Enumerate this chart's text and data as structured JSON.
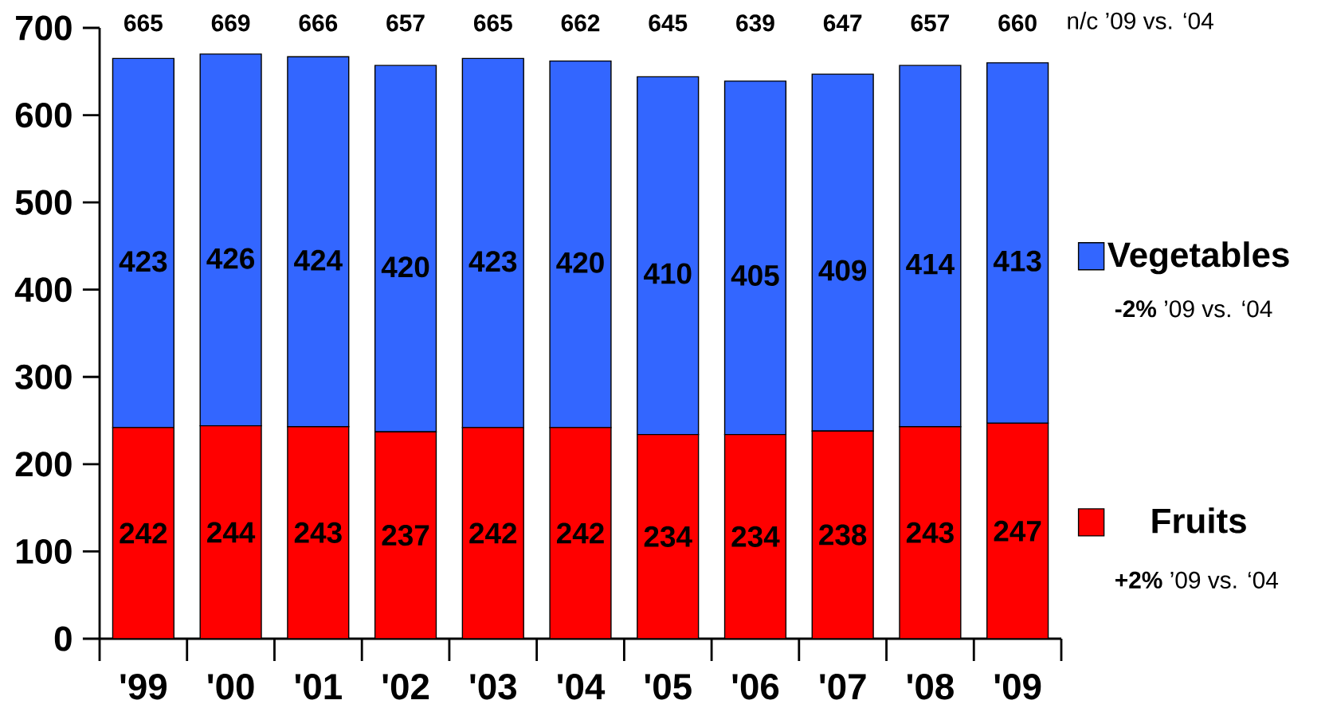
{
  "chart_data": {
    "type": "bar",
    "stacked": true,
    "categories": [
      "'99",
      "'00",
      "'01",
      "'02",
      "'03",
      "'04",
      "'05",
      "'06",
      "'07",
      "'08",
      "'09"
    ],
    "series": [
      {
        "name": "Fruits",
        "color": "#ff0000",
        "values": [
          242,
          244,
          243,
          237,
          242,
          242,
          234,
          234,
          238,
          243,
          247
        ]
      },
      {
        "name": "Vegetables",
        "color": "#3366ff",
        "values": [
          423,
          426,
          424,
          420,
          423,
          420,
          410,
          405,
          409,
          414,
          413
        ]
      }
    ],
    "totals": [
      "665",
      "669",
      "666",
      "657",
      "665",
      "662",
      "645",
      "639",
      "647",
      "657",
      "660"
    ],
    "data_labels": true,
    "ylim": [
      0,
      700
    ],
    "yticks": [
      0,
      100,
      200,
      300,
      400,
      500,
      600,
      700
    ],
    "legend": "right",
    "annotations": [
      "n/c ’09 vs. ‘04",
      "**-2%** ’09 vs. ‘04",
      "**+2%** ’09 vs. ‘04"
    ]
  }
}
